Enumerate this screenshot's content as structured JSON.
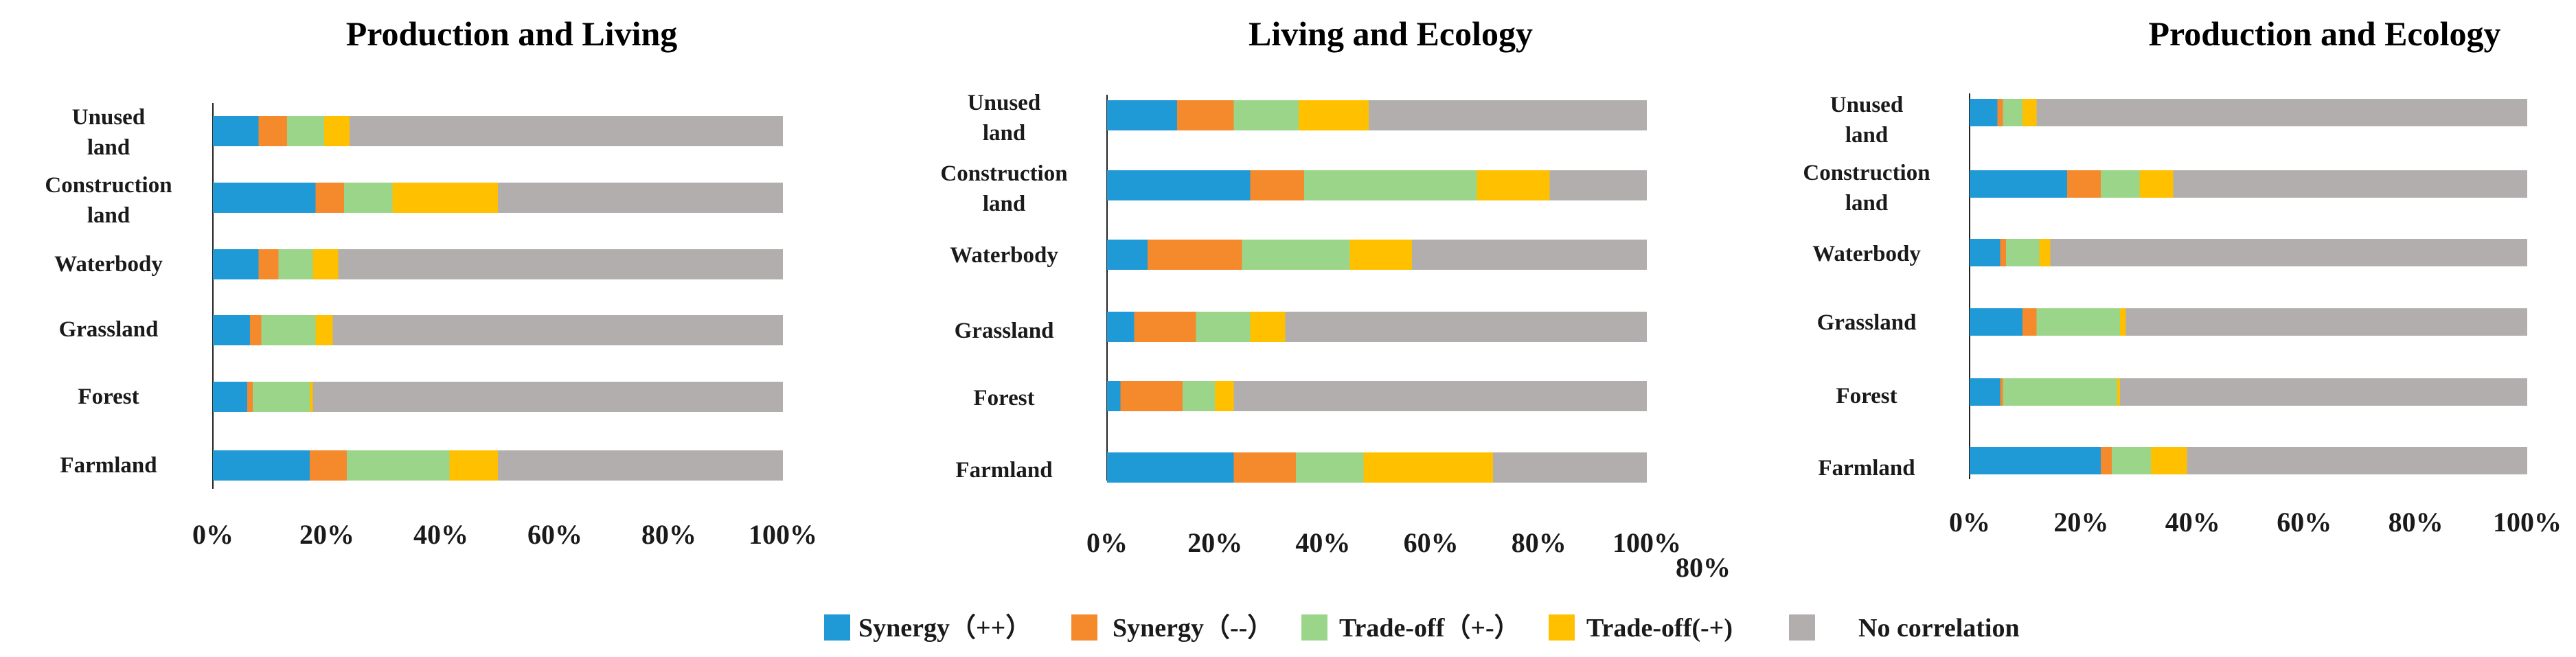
{
  "chart_data": [
    {
      "type": "bar",
      "orientation": "horizontal",
      "stacked": true,
      "title": "Production and Living",
      "categories": [
        "Unused land",
        "Construction land",
        "Waterbody",
        "Grassland",
        "Forest",
        "Farmland"
      ],
      "category_lines": [
        [
          "Unused",
          "land"
        ],
        [
          "Construction",
          "land"
        ],
        [
          "Waterbody"
        ],
        [
          "Grassland"
        ],
        [
          "Forest"
        ],
        [
          "Farmland"
        ]
      ],
      "x_ticks": [
        "0%",
        "20%",
        "40%",
        "60%",
        "80%",
        "100%"
      ],
      "xlim": [
        0,
        100
      ],
      "series": [
        {
          "name": "Synergy (++)",
          "values": [
            8,
            18,
            8,
            6.5,
            6,
            17
          ]
        },
        {
          "name": "Synergy (--)",
          "values": [
            5,
            5,
            3.5,
            2,
            1,
            6.5
          ]
        },
        {
          "name": "Trade-off (+-)",
          "values": [
            6.5,
            8.5,
            6,
            9.5,
            10,
            18
          ]
        },
        {
          "name": "Trade-off(-+)",
          "values": [
            4.5,
            18.5,
            4.5,
            3,
            0.5,
            8.5
          ]
        },
        {
          "name": "No correlation",
          "values": [
            76,
            50,
            78,
            79,
            82.5,
            50
          ]
        }
      ]
    },
    {
      "type": "bar",
      "orientation": "horizontal",
      "stacked": true,
      "title": "Living and Ecology",
      "categories": [
        "Unused land",
        "Construction land",
        "Waterbody",
        "Grassland",
        "Forest",
        "Farmland"
      ],
      "category_lines": [
        [
          "Unused",
          "land"
        ],
        [
          "Construction",
          "land"
        ],
        [
          "Waterbody"
        ],
        [
          "Grassland"
        ],
        [
          "Forest"
        ],
        [
          "Farmland"
        ]
      ],
      "x_ticks": [
        "0%",
        "20%",
        "40%",
        "60%",
        "80%",
        "100%"
      ],
      "extra_labels": [
        "80%"
      ],
      "xlim": [
        0,
        100
      ],
      "series": [
        {
          "name": "Synergy (++)",
          "values": [
            13,
            26.5,
            7.5,
            5,
            2.5,
            23.5
          ]
        },
        {
          "name": "Synergy (--)",
          "values": [
            10.5,
            10,
            17.5,
            11.5,
            11.5,
            11.5
          ]
        },
        {
          "name": "Trade-off (+-)",
          "values": [
            12,
            32,
            20,
            10,
            6,
            12.5
          ]
        },
        {
          "name": "Trade-off(-+)",
          "values": [
            13,
            13.5,
            11.5,
            6.5,
            3.5,
            24
          ]
        },
        {
          "name": "No correlation",
          "values": [
            51.5,
            18,
            43.5,
            67,
            76.5,
            28.5
          ]
        }
      ]
    },
    {
      "type": "bar",
      "orientation": "horizontal",
      "stacked": true,
      "title": "Production and Ecology",
      "categories": [
        "Unused land",
        "Construction land",
        "Waterbody",
        "Grassland",
        "Forest",
        "Farmland"
      ],
      "category_lines": [
        [
          "Unused",
          "land"
        ],
        [
          "Construction",
          "land"
        ],
        [
          "Waterbody"
        ],
        [
          "Grassland"
        ],
        [
          "Forest"
        ],
        [
          "Farmland"
        ]
      ],
      "x_ticks": [
        "0%",
        "20%",
        "40%",
        "60%",
        "80%",
        "100%"
      ],
      "xlim": [
        0,
        100
      ],
      "series": [
        {
          "name": "Synergy (++)",
          "values": [
            5,
            17.5,
            5.5,
            9.5,
            5.5,
            23.5
          ]
        },
        {
          "name": "Synergy (--)",
          "values": [
            1,
            6,
            1,
            2.5,
            0.5,
            2
          ]
        },
        {
          "name": "Trade-off (+-)",
          "values": [
            3.5,
            7,
            6,
            15,
            20.5,
            7
          ]
        },
        {
          "name": "Trade-off(-+)",
          "values": [
            2.5,
            6,
            2,
            1,
            0.5,
            6.5
          ]
        },
        {
          "name": "No correlation",
          "values": [
            88,
            63.5,
            85.5,
            72,
            73,
            61
          ]
        }
      ]
    }
  ],
  "legend": {
    "items": [
      {
        "label": "Synergy（++）",
        "color": "#1f9ad6"
      },
      {
        "label": "Synergy（--）",
        "color": "#f58a2d"
      },
      {
        "label": "Trade-off（+-）",
        "color": "#9bd58a"
      },
      {
        "label": "Trade-off(-+)",
        "color": "#ffc000"
      },
      {
        "label": "No correlation",
        "color": "#b2aeae"
      }
    ]
  },
  "colors": [
    "#1f9ad6",
    "#f58a2d",
    "#9bd58a",
    "#ffc000",
    "#b2aeae"
  ]
}
